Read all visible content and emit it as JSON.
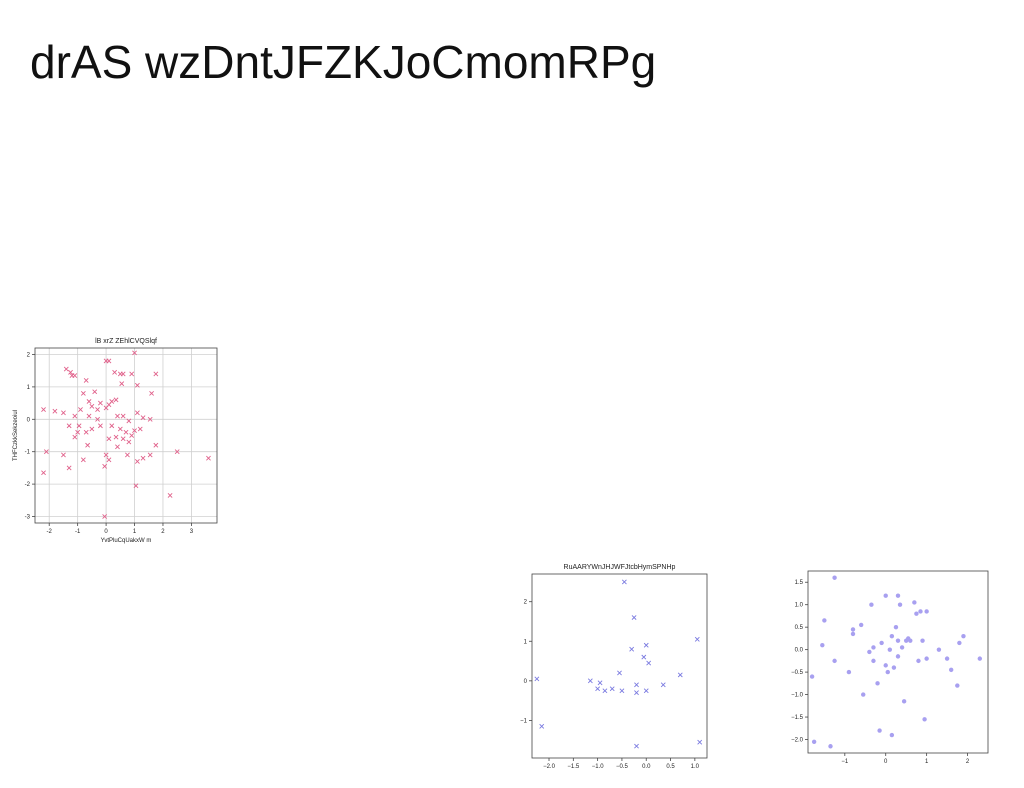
{
  "page": {
    "title": "drAS wzDntJFZKJoCmomRPg"
  },
  "chart_data": [
    {
      "type": "scatter",
      "title": "lB xrZ ZEhlCVQSlqf",
      "xlabel": "YvtPluCqUakxW m",
      "ylabel": "THFCzkkSekzeoiul",
      "marker": "x",
      "color": "#e0608a",
      "grid": true,
      "xlim": [
        -2.5,
        3.9
      ],
      "ylim": [
        -3.2,
        2.2
      ],
      "xticks": [
        -2,
        -1,
        0,
        1,
        2,
        3
      ],
      "yticks": [
        -3,
        -2,
        -1,
        0,
        1,
        2
      ],
      "points": [
        [
          -1.4,
          1.55
        ],
        [
          -1.25,
          1.45
        ],
        [
          -1.2,
          1.35
        ],
        [
          -1.1,
          1.35
        ],
        [
          -0.7,
          1.2
        ],
        [
          0.0,
          1.8
        ],
        [
          0.1,
          1.8
        ],
        [
          0.3,
          1.45
        ],
        [
          0.5,
          1.4
        ],
        [
          0.6,
          1.4
        ],
        [
          0.9,
          1.4
        ],
        [
          1.0,
          2.05
        ],
        [
          1.1,
          1.05
        ],
        [
          1.75,
          1.4
        ],
        [
          1.6,
          0.8
        ],
        [
          0.55,
          1.1
        ],
        [
          -0.8,
          0.8
        ],
        [
          -0.4,
          0.85
        ],
        [
          0.35,
          0.6
        ],
        [
          -0.6,
          0.55
        ],
        [
          -0.2,
          0.5
        ],
        [
          0.1,
          0.45
        ],
        [
          0.2,
          0.55
        ],
        [
          0.0,
          0.35
        ],
        [
          -0.5,
          0.4
        ],
        [
          -0.3,
          0.3
        ],
        [
          -0.9,
          0.3
        ],
        [
          -1.5,
          0.2
        ],
        [
          -1.8,
          0.25
        ],
        [
          -2.2,
          0.3
        ],
        [
          -1.1,
          0.1
        ],
        [
          -0.6,
          0.1
        ],
        [
          -0.3,
          0.0
        ],
        [
          0.4,
          0.1
        ],
        [
          0.6,
          0.1
        ],
        [
          0.8,
          -0.05
        ],
        [
          1.1,
          0.2
        ],
        [
          1.3,
          0.05
        ],
        [
          1.55,
          0.0
        ],
        [
          0.2,
          -0.2
        ],
        [
          0.5,
          -0.3
        ],
        [
          0.7,
          -0.4
        ],
        [
          0.9,
          -0.5
        ],
        [
          1.0,
          -0.35
        ],
        [
          1.2,
          -0.3
        ],
        [
          -1.3,
          -0.2
        ],
        [
          -0.95,
          -0.2
        ],
        [
          -1.0,
          -0.4
        ],
        [
          -0.5,
          -0.3
        ],
        [
          -0.2,
          -0.2
        ],
        [
          0.35,
          -0.55
        ],
        [
          0.6,
          -0.6
        ],
        [
          0.8,
          -0.7
        ],
        [
          -0.7,
          -0.4
        ],
        [
          0.1,
          -0.6
        ],
        [
          -1.1,
          -0.55
        ],
        [
          1.75,
          -0.8
        ],
        [
          0.4,
          -0.85
        ],
        [
          -0.65,
          -0.8
        ],
        [
          -2.1,
          -1.0
        ],
        [
          -1.5,
          -1.1
        ],
        [
          -0.8,
          -1.25
        ],
        [
          0.0,
          -1.1
        ],
        [
          0.1,
          -1.25
        ],
        [
          0.75,
          -1.1
        ],
        [
          1.1,
          -1.3
        ],
        [
          1.3,
          -1.2
        ],
        [
          1.55,
          -1.1
        ],
        [
          -1.3,
          -1.5
        ],
        [
          -0.05,
          -1.45
        ],
        [
          2.5,
          -1.0
        ],
        [
          3.6,
          -1.2
        ],
        [
          -2.2,
          -1.65
        ],
        [
          1.05,
          -2.05
        ],
        [
          2.25,
          -2.35
        ],
        [
          -0.05,
          -3.0
        ]
      ]
    },
    {
      "type": "scatter",
      "title": "RuAARYWnJHJWFJtcbHymSPNHp",
      "xlabel": "",
      "ylabel": "",
      "marker": "x",
      "color": "#7a7ae0",
      "grid": false,
      "xlim": [
        -2.35,
        1.25
      ],
      "ylim": [
        -1.95,
        2.7
      ],
      "xticks": [
        -2.0,
        -1.5,
        -1.0,
        -0.5,
        0.0,
        0.5,
        1.0
      ],
      "xtick_labels": [
        "−2.0",
        "−1.5",
        "−1.0",
        "−0.5",
        "0.0",
        "0.5",
        "1.0"
      ],
      "yticks": [
        -1,
        0,
        1,
        2
      ],
      "ytick_labels": [
        "−1",
        "0",
        "1",
        "2"
      ],
      "points": [
        [
          -0.45,
          2.5
        ],
        [
          -0.25,
          1.6
        ],
        [
          -2.25,
          0.05
        ],
        [
          -2.15,
          -1.15
        ],
        [
          -1.15,
          0.0
        ],
        [
          -1.0,
          -0.2
        ],
        [
          -0.95,
          -0.05
        ],
        [
          -0.85,
          -0.25
        ],
        [
          -0.7,
          -0.2
        ],
        [
          -0.55,
          0.2
        ],
        [
          -0.5,
          -0.25
        ],
        [
          -0.3,
          0.8
        ],
        [
          -0.2,
          -0.1
        ],
        [
          -0.2,
          -0.3
        ],
        [
          -0.05,
          0.6
        ],
        [
          0.0,
          0.9
        ],
        [
          0.05,
          0.45
        ],
        [
          0.0,
          -0.25
        ],
        [
          0.35,
          -0.1
        ],
        [
          0.7,
          0.15
        ],
        [
          1.05,
          1.05
        ],
        [
          1.1,
          -1.55
        ],
        [
          -0.2,
          -1.65
        ]
      ]
    },
    {
      "type": "scatter",
      "title": "",
      "xlabel": "",
      "ylabel": "",
      "marker": "o",
      "color": "#a8a0f0",
      "grid": false,
      "xlim": [
        -1.9,
        2.5
      ],
      "ylim": [
        -2.3,
        1.75
      ],
      "xticks": [
        -1,
        0,
        1,
        2
      ],
      "xtick_labels": [
        "−1",
        "0",
        "1",
        "2"
      ],
      "yticks": [
        -2.0,
        -1.5,
        -1.0,
        -0.5,
        0.0,
        0.5,
        1.0,
        1.5
      ],
      "ytick_labels": [
        "−2.0",
        "−1.5",
        "−1.0",
        "−0.5",
        "0.0",
        "0.5",
        "1.0",
        "1.5"
      ],
      "points": [
        [
          -1.25,
          1.6
        ],
        [
          -1.5,
          0.65
        ],
        [
          -1.55,
          0.1
        ],
        [
          -1.8,
          -0.6
        ],
        [
          -1.75,
          -2.05
        ],
        [
          -1.35,
          -2.15
        ],
        [
          -1.25,
          -0.25
        ],
        [
          -0.9,
          -0.5
        ],
        [
          -0.8,
          0.45
        ],
        [
          -0.8,
          0.35
        ],
        [
          -0.6,
          0.55
        ],
        [
          -0.55,
          -1.0
        ],
        [
          -0.4,
          -0.05
        ],
        [
          -0.35,
          1.0
        ],
        [
          -0.3,
          0.05
        ],
        [
          -0.3,
          -0.25
        ],
        [
          -0.2,
          -0.75
        ],
        [
          -0.1,
          0.15
        ],
        [
          -0.15,
          -1.8
        ],
        [
          0.0,
          1.2
        ],
        [
          0.0,
          -0.35
        ],
        [
          0.05,
          -0.5
        ],
        [
          0.1,
          0.0
        ],
        [
          0.15,
          0.3
        ],
        [
          0.2,
          -0.4
        ],
        [
          0.25,
          0.5
        ],
        [
          0.3,
          0.2
        ],
        [
          0.3,
          -0.15
        ],
        [
          0.35,
          1.0
        ],
        [
          0.3,
          1.2
        ],
        [
          0.4,
          0.05
        ],
        [
          0.45,
          -1.15
        ],
        [
          0.5,
          0.2
        ],
        [
          0.55,
          0.25
        ],
        [
          0.6,
          0.2
        ],
        [
          0.7,
          1.05
        ],
        [
          0.75,
          0.8
        ],
        [
          0.8,
          -0.25
        ],
        [
          0.85,
          0.85
        ],
        [
          0.9,
          0.2
        ],
        [
          1.0,
          0.85
        ],
        [
          1.0,
          -0.2
        ],
        [
          0.95,
          -1.55
        ],
        [
          0.15,
          -1.9
        ],
        [
          1.3,
          0.0
        ],
        [
          1.5,
          -0.2
        ],
        [
          1.6,
          -0.45
        ],
        [
          1.75,
          -0.8
        ],
        [
          1.8,
          0.15
        ],
        [
          1.9,
          0.3
        ],
        [
          2.3,
          -0.2
        ]
      ]
    }
  ]
}
